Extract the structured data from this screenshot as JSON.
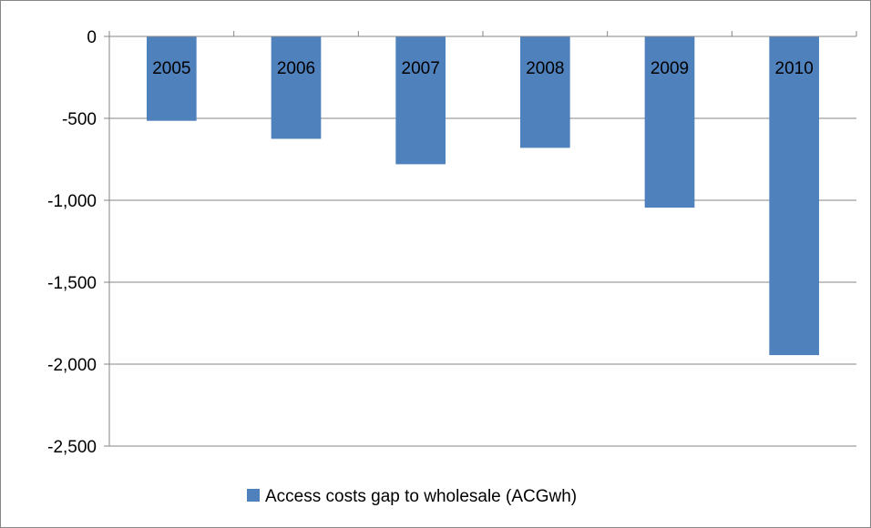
{
  "chart_data": {
    "type": "bar",
    "title": "",
    "xlabel": "",
    "ylabel": "",
    "categories": [
      "2005",
      "2006",
      "2007",
      "2008",
      "2009",
      "2010"
    ],
    "series": [
      {
        "name": "Access costs gap to wholesale (ACGwh)",
        "values": [
          -515,
          -625,
          -780,
          -680,
          -1045,
          -1945
        ],
        "color": "#4f81bd"
      }
    ],
    "ylim": [
      -2500,
      0
    ],
    "yticks": [
      0,
      -500,
      -1000,
      -1500,
      -2000,
      -2500
    ],
    "ytick_labels": [
      "0",
      "-500",
      "-1,000",
      "-1,500",
      "-2,000",
      "-2,500"
    ],
    "grid": true,
    "legend_position": "bottom",
    "category_labels_position": "top-inside-bars"
  }
}
